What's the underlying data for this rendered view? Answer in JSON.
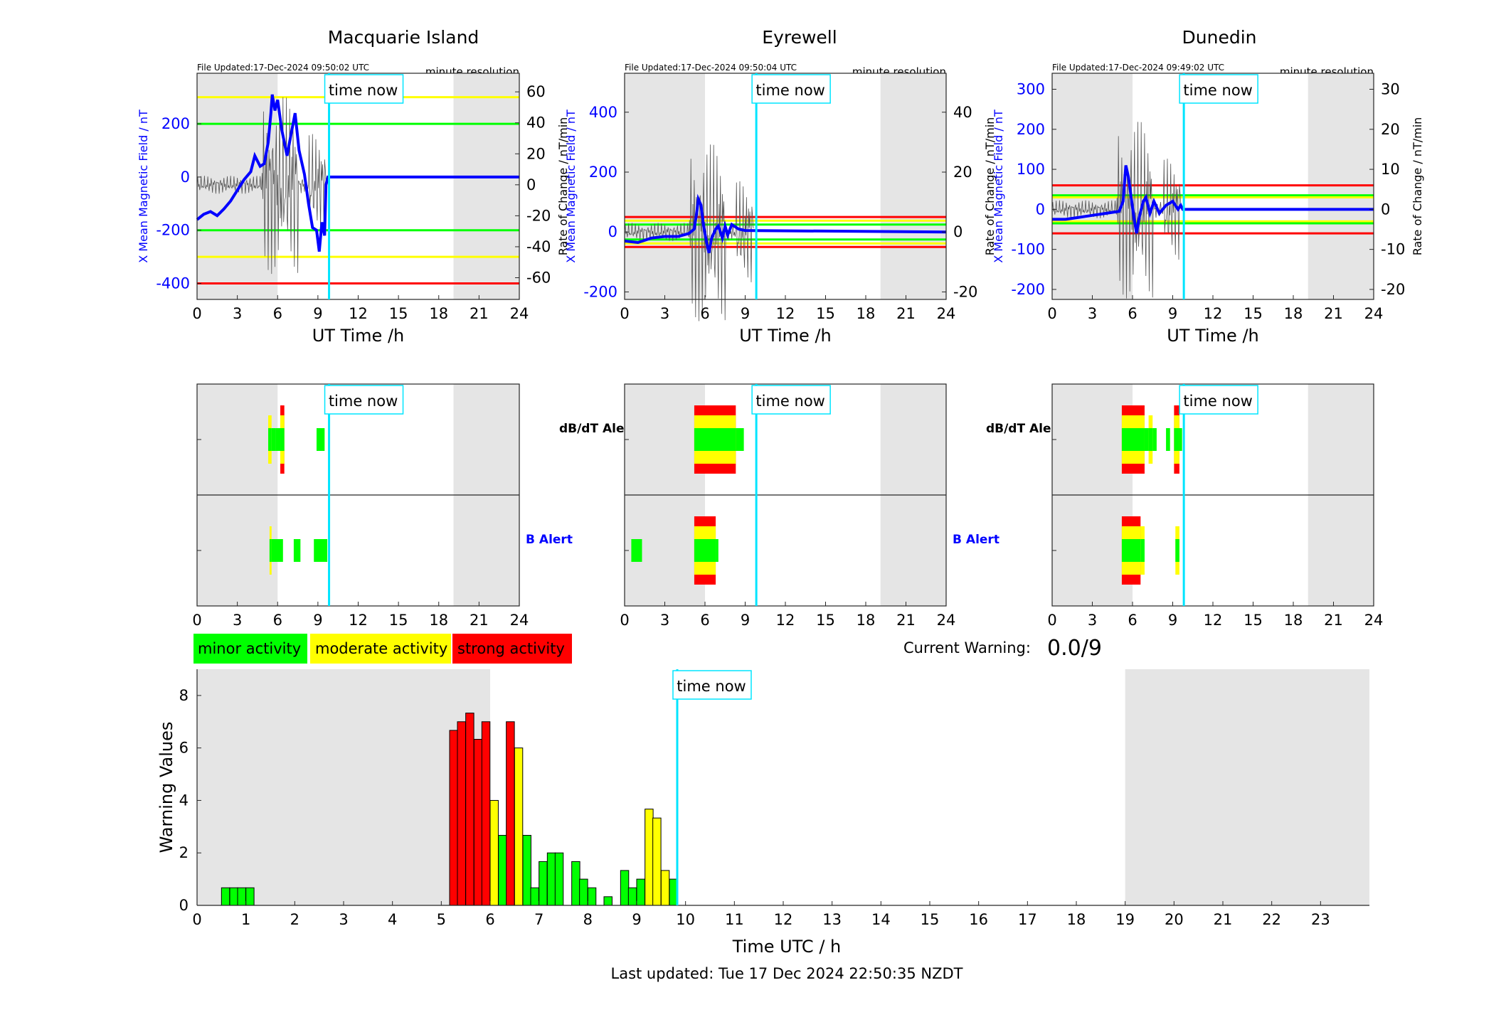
{
  "panels": [
    {
      "id": "mac",
      "title": "Macquarie Island",
      "file_updated": "File Updated:17-Dec-2024 09:50:02 UTC"
    },
    {
      "id": "eyr",
      "title": "Eyrewell",
      "file_updated": "File Updated:17-Dec-2024 09:50:04 UTC"
    },
    {
      "id": "dun",
      "title": "Dunedin",
      "file_updated": "File Updated:17-Dec-2024 09:49:02 UTC"
    }
  ],
  "labels": {
    "resolution": "minute resolution",
    "time_now": "time now",
    "ut_time": "UT Time /h",
    "x_field": "X Mean Magnetic Field / nT",
    "rate": "Rate of Change / nT/min",
    "dbdt_alert": "dB/dT Alert",
    "b_alert": "B Alert",
    "minor": "minor activity",
    "moderate": "moderate activity",
    "strong": "strong activity",
    "current_warning_label": "Current Warning:",
    "current_warning_value": "0.0/9",
    "bottom_xlabel": "Time UTC / h",
    "bottom_ylabel": "Warning Values",
    "last_updated": "Last updated: Tue 17 Dec 2024 22:50:35 NZDT"
  },
  "colors": {
    "green": "#00ff00",
    "yellow": "#ffff00",
    "red": "#ff0000",
    "blue": "#0000ff",
    "cyan": "#00e5ff",
    "shade": "#e5e5e5"
  },
  "chart_data": [
    {
      "type": "line",
      "title": "Macquarie Island",
      "xlabel": "UT Time /h",
      "ylabel": "X Mean Magnetic Field / nT",
      "ylabel_right": "Rate of Change / nT/min",
      "xlim": [
        0,
        24
      ],
      "ylim": [
        -460,
        390
      ],
      "ylim_right": [
        -74,
        72
      ],
      "xticks": [
        0,
        3,
        6,
        9,
        12,
        15,
        18,
        21,
        24
      ],
      "yticks": [
        -400,
        -200,
        0,
        200
      ],
      "yticks_right": [
        -60,
        -40,
        -20,
        0,
        20,
        40,
        60
      ],
      "shaded_hours": [
        [
          0,
          6
        ],
        [
          19.1,
          24
        ]
      ],
      "time_now": 9.83,
      "thresholds": [
        {
          "value": 300,
          "color": "yellow"
        },
        {
          "value": 200,
          "color": "green"
        },
        {
          "value": -200,
          "color": "green"
        },
        {
          "value": -300,
          "color": "yellow"
        },
        {
          "value": -400,
          "color": "red"
        }
      ],
      "series": [
        {
          "values": [
            [
              0,
              -160
            ],
            [
              0.5,
              -140
            ],
            [
              1,
              -130
            ],
            [
              1.5,
              -145
            ],
            [
              2,
              -120
            ],
            [
              2.5,
              -90
            ],
            [
              3,
              -50
            ],
            [
              3.5,
              -10
            ],
            [
              4,
              20
            ],
            [
              4.3,
              80
            ],
            [
              4.7,
              40
            ],
            [
              5,
              50
            ],
            [
              5.3,
              130
            ],
            [
              5.5,
              240
            ],
            [
              5.6,
              310
            ],
            [
              5.8,
              250
            ],
            [
              6,
              290
            ],
            [
              6.3,
              180
            ],
            [
              6.7,
              80
            ],
            [
              7,
              160
            ],
            [
              7.3,
              240
            ],
            [
              7.6,
              100
            ],
            [
              8,
              10
            ],
            [
              8.3,
              -100
            ],
            [
              8.6,
              -190
            ],
            [
              8.9,
              -200
            ],
            [
              9.1,
              -280
            ],
            [
              9.3,
              -170
            ],
            [
              9.5,
              -220
            ],
            [
              9.6,
              -30
            ],
            [
              9.75,
              0
            ],
            [
              24,
              0
            ]
          ]
        }
      ]
    },
    {
      "type": "line",
      "title": "Eyrewell",
      "xlabel": "UT Time /h",
      "ylabel": "X Mean Magnetic Field / nT",
      "ylabel_right": "Rate of Change / nT/min",
      "xlim": [
        0,
        24
      ],
      "ylim": [
        -225,
        530
      ],
      "ylim_right": [
        -22.5,
        53
      ],
      "xticks": [
        0,
        3,
        6,
        9,
        12,
        15,
        18,
        21,
        24
      ],
      "yticks": [
        -200,
        0,
        200,
        400
      ],
      "yticks_right": [
        -20,
        0,
        20,
        40
      ],
      "shaded_hours": [
        [
          0,
          6
        ],
        [
          19.1,
          24
        ]
      ],
      "time_now": 9.83,
      "thresholds": [
        {
          "value": 50,
          "color": "red"
        },
        {
          "value": 38,
          "color": "yellow"
        },
        {
          "value": 25,
          "color": "green"
        },
        {
          "value": -25,
          "color": "green"
        },
        {
          "value": -38,
          "color": "yellow"
        },
        {
          "value": -50,
          "color": "red"
        }
      ],
      "series": [
        {
          "values": [
            [
              0,
              -30
            ],
            [
              1,
              -35
            ],
            [
              2,
              -20
            ],
            [
              3,
              -15
            ],
            [
              4,
              -15
            ],
            [
              4.8,
              -5
            ],
            [
              5.2,
              10
            ],
            [
              5.4,
              70
            ],
            [
              5.5,
              110
            ],
            [
              5.7,
              90
            ],
            [
              5.9,
              20
            ],
            [
              6.1,
              -30
            ],
            [
              6.3,
              -70
            ],
            [
              6.5,
              -20
            ],
            [
              6.8,
              10
            ],
            [
              7,
              20
            ],
            [
              7.3,
              -20
            ],
            [
              7.5,
              20
            ],
            [
              7.7,
              -10
            ],
            [
              8,
              25
            ],
            [
              8.5,
              10
            ],
            [
              9,
              5
            ],
            [
              24,
              0
            ]
          ]
        }
      ]
    },
    {
      "type": "line",
      "title": "Dunedin",
      "xlabel": "UT Time /h",
      "ylabel": "X Mean Magnetic Field / nT",
      "ylabel_right": "Rate of Change / nT/min",
      "xlim": [
        0,
        24
      ],
      "ylim": [
        -225,
        340
      ],
      "ylim_right": [
        -22.5,
        34
      ],
      "xticks": [
        0,
        3,
        6,
        9,
        12,
        15,
        18,
        21,
        24
      ],
      "yticks": [
        -200,
        -100,
        0,
        100,
        200,
        300
      ],
      "yticks_right": [
        -20,
        -10,
        0,
        10,
        20,
        30
      ],
      "shaded_hours": [
        [
          0,
          6
        ],
        [
          19.1,
          24
        ]
      ],
      "time_now": 9.83,
      "thresholds": [
        {
          "value": 60,
          "color": "red"
        },
        {
          "value": 35,
          "color": "green"
        },
        {
          "value": 30,
          "color": "yellow"
        },
        {
          "value": -30,
          "color": "yellow"
        },
        {
          "value": -35,
          "color": "green"
        },
        {
          "value": -60,
          "color": "red"
        }
      ],
      "series": [
        {
          "values": [
            [
              0,
              -25
            ],
            [
              1,
              -25
            ],
            [
              2,
              -20
            ],
            [
              3,
              -15
            ],
            [
              4,
              -10
            ],
            [
              5,
              -5
            ],
            [
              5.3,
              20
            ],
            [
              5.5,
              110
            ],
            [
              5.7,
              80
            ],
            [
              5.9,
              30
            ],
            [
              6.1,
              -20
            ],
            [
              6.3,
              -60
            ],
            [
              6.5,
              -20
            ],
            [
              6.8,
              20
            ],
            [
              7,
              30
            ],
            [
              7.3,
              -10
            ],
            [
              7.6,
              20
            ],
            [
              8,
              -10
            ],
            [
              8.5,
              10
            ],
            [
              9,
              20
            ],
            [
              9.4,
              0
            ],
            [
              9.6,
              10
            ],
            [
              9.75,
              0
            ],
            [
              24,
              0
            ]
          ]
        }
      ]
    },
    {
      "type": "bar",
      "title": "",
      "xlabel": "",
      "ylabel": "dB/dT Alert / B Alert",
      "station": "Macquarie Island",
      "xlim": [
        0,
        24
      ],
      "xticks": [
        0,
        3,
        6,
        9,
        12,
        15,
        18,
        21,
        24
      ],
      "dbdt": [
        [
          5.3,
          5.55,
          "yellow",
          1
        ],
        [
          5.55,
          5.85,
          "green",
          0
        ],
        [
          5.85,
          6.2,
          "green",
          0
        ],
        [
          6.2,
          6.5,
          "red",
          2
        ],
        [
          8.9,
          9.5,
          "green",
          0
        ]
      ],
      "b": [
        [
          5.4,
          6.4,
          "green",
          0
        ],
        [
          5.4,
          5.55,
          "yellow",
          1
        ],
        [
          7.2,
          7.7,
          "green",
          0
        ],
        [
          8.7,
          9.7,
          "green",
          0
        ]
      ],
      "shaded_hours": [
        [
          0,
          6
        ],
        [
          19.1,
          24
        ]
      ],
      "time_now": 9.83
    },
    {
      "type": "bar",
      "title": "",
      "xlabel": "",
      "ylabel": "dB/dT Alert / B Alert",
      "station": "Eyrewell",
      "xlim": [
        0,
        24
      ],
      "xticks": [
        0,
        3,
        6,
        9,
        12,
        15,
        18,
        21,
        24
      ],
      "dbdt": [
        [
          5.2,
          8.3,
          "red",
          2
        ],
        [
          8.3,
          8.9,
          "green",
          0
        ]
      ],
      "b": [
        [
          0.5,
          1.3,
          "green",
          0
        ],
        [
          5.2,
          6.8,
          "red",
          2
        ],
        [
          6.8,
          7.0,
          "green",
          0
        ]
      ],
      "shaded_hours": [
        [
          0,
          6
        ],
        [
          19.1,
          24
        ]
      ],
      "time_now": 9.83
    },
    {
      "type": "bar",
      "title": "",
      "xlabel": "",
      "ylabel": "dB/dT Alert / B Alert",
      "station": "Dunedin",
      "xlim": [
        0,
        24
      ],
      "xticks": [
        0,
        3,
        6,
        9,
        12,
        15,
        18,
        21,
        24
      ],
      "dbdt": [
        [
          5.2,
          6.9,
          "red",
          2
        ],
        [
          6.9,
          7.2,
          "green",
          0
        ],
        [
          7.2,
          7.5,
          "yellow",
          1
        ],
        [
          7.5,
          7.8,
          "green",
          0
        ],
        [
          8.5,
          8.8,
          "green",
          0
        ],
        [
          9.1,
          9.5,
          "red",
          2
        ],
        [
          9.5,
          9.7,
          "green",
          0
        ]
      ],
      "b": [
        [
          5.2,
          6.6,
          "red",
          2
        ],
        [
          6.6,
          6.9,
          "yellow",
          1
        ],
        [
          9.2,
          9.5,
          "yellow",
          1
        ]
      ],
      "shaded_hours": [
        [
          0,
          6
        ],
        [
          19.1,
          24
        ]
      ],
      "time_now": 9.83
    },
    {
      "type": "bar",
      "title": "",
      "xlabel": "Time UTC / h",
      "ylabel": "Warning Values",
      "xlim": [
        0,
        24
      ],
      "ylim": [
        0,
        9
      ],
      "xticks": [
        0,
        1,
        2,
        3,
        4,
        5,
        6,
        7,
        8,
        9,
        10,
        11,
        12,
        13,
        14,
        15,
        16,
        17,
        18,
        19,
        20,
        21,
        22,
        23
      ],
      "yticks": [
        0,
        2,
        4,
        6,
        8
      ],
      "shaded_hours": [
        [
          0,
          6
        ],
        [
          19,
          24
        ]
      ],
      "time_now": 9.83,
      "bars": [
        [
          0.5,
          0.67,
          "green"
        ],
        [
          0.67,
          0.67,
          "green"
        ],
        [
          0.83,
          0.67,
          "green"
        ],
        [
          1.0,
          0.67,
          "green"
        ],
        [
          5.17,
          6.67,
          "red"
        ],
        [
          5.33,
          7.0,
          "red"
        ],
        [
          5.5,
          7.33,
          "red"
        ],
        [
          5.67,
          6.33,
          "red"
        ],
        [
          5.83,
          7.0,
          "red"
        ],
        [
          6.0,
          4.0,
          "yellow"
        ],
        [
          6.17,
          2.67,
          "green"
        ],
        [
          6.33,
          7.0,
          "red"
        ],
        [
          6.5,
          6.0,
          "yellow"
        ],
        [
          6.67,
          2.67,
          "green"
        ],
        [
          6.83,
          0.67,
          "green"
        ],
        [
          7.0,
          1.67,
          "green"
        ],
        [
          7.17,
          2.0,
          "green"
        ],
        [
          7.33,
          2.0,
          "green"
        ],
        [
          7.67,
          1.67,
          "green"
        ],
        [
          7.83,
          1.0,
          "green"
        ],
        [
          8.0,
          0.67,
          "green"
        ],
        [
          8.33,
          0.33,
          "green"
        ],
        [
          8.67,
          1.33,
          "green"
        ],
        [
          8.83,
          0.67,
          "green"
        ],
        [
          9.0,
          1.0,
          "green"
        ],
        [
          9.17,
          3.67,
          "yellow"
        ],
        [
          9.33,
          3.33,
          "yellow"
        ],
        [
          9.5,
          1.33,
          "yellow"
        ],
        [
          9.67,
          1.0,
          "green"
        ]
      ]
    }
  ]
}
